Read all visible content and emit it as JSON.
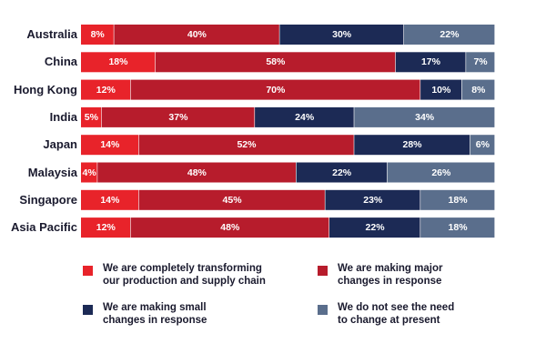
{
  "chart_data": {
    "type": "bar",
    "orientation": "horizontal",
    "stacked": true,
    "categories": [
      "Australia",
      "China",
      "Hong Kong",
      "India",
      "Japan",
      "Malaysia",
      "Singapore",
      "Asia Pacific"
    ],
    "series": [
      {
        "name": "We are completely transforming\nour production and supply chain",
        "color": "#e8232a",
        "values": [
          8,
          18,
          12,
          5,
          14,
          4,
          14,
          12
        ],
        "labels": [
          "8%",
          "18%",
          "12%",
          "5%",
          "14%",
          "4%",
          "14%",
          "12%"
        ]
      },
      {
        "name": "We are making major\nchanges in response",
        "color": "#b71c2c",
        "values": [
          40,
          58,
          70,
          37,
          52,
          48,
          45,
          48
        ],
        "labels": [
          "40%",
          "58%",
          "70%",
          "37%",
          "52%",
          "48%",
          "45%",
          "48%"
        ]
      },
      {
        "name": "We are making small\nchanges in response",
        "color": "#1c2a55",
        "values": [
          30,
          17,
          10,
          24,
          28,
          22,
          23,
          22
        ],
        "labels": [
          "30%",
          "17%",
          "10%",
          "24%",
          "28%",
          "22%",
          "23%",
          "22%"
        ]
      },
      {
        "name": "We do not see the need\nto change at present",
        "color": "#5a6e8c",
        "values": [
          22,
          7,
          8,
          34,
          6,
          26,
          18,
          18
        ],
        "labels": [
          "22%",
          "7%",
          "8%",
          "34%",
          "6%",
          "26%",
          "18%",
          "18%"
        ]
      }
    ],
    "xlim": [
      0,
      100
    ],
    "legend_position": "bottom",
    "grid": false
  }
}
